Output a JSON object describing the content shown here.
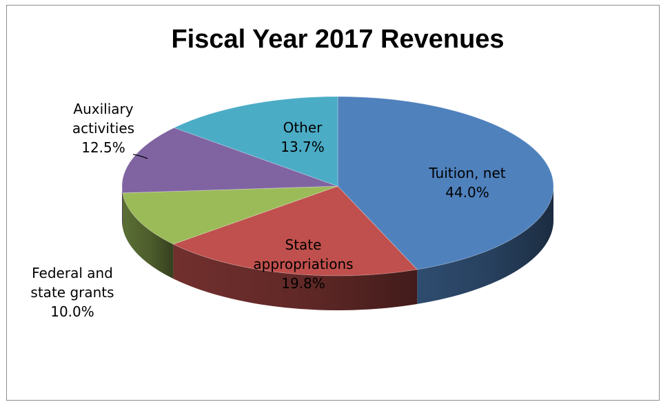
{
  "chart_data": {
    "type": "pie",
    "title": "Fiscal Year 2017 Revenues",
    "legend": "none",
    "slices": [
      {
        "name": "Tuition, net",
        "value": 44.0,
        "label": "44.0%",
        "color": "#4f81bd",
        "label_lines": [
          "Tuition, net",
          "44.0%"
        ]
      },
      {
        "name": "State appropriations",
        "value": 19.8,
        "label": "19.8%",
        "color": "#c0504d",
        "label_lines": [
          "State",
          "appropriations",
          "19.8%"
        ]
      },
      {
        "name": "Federal and state grants",
        "value": 10.0,
        "label": "10.0%",
        "color": "#9bbb59",
        "label_lines": [
          "Federal and",
          "state grants",
          "10.0%"
        ]
      },
      {
        "name": "Auxiliary activities",
        "value": 12.5,
        "label": "12.5%",
        "color": "#8064a2",
        "label_lines": [
          "Auxiliary",
          "activities",
          "12.5%"
        ]
      },
      {
        "name": "Other",
        "value": 13.7,
        "label": "13.7%",
        "color": "#4bacc6",
        "label_lines": [
          "Other",
          "13.7%"
        ]
      }
    ]
  }
}
